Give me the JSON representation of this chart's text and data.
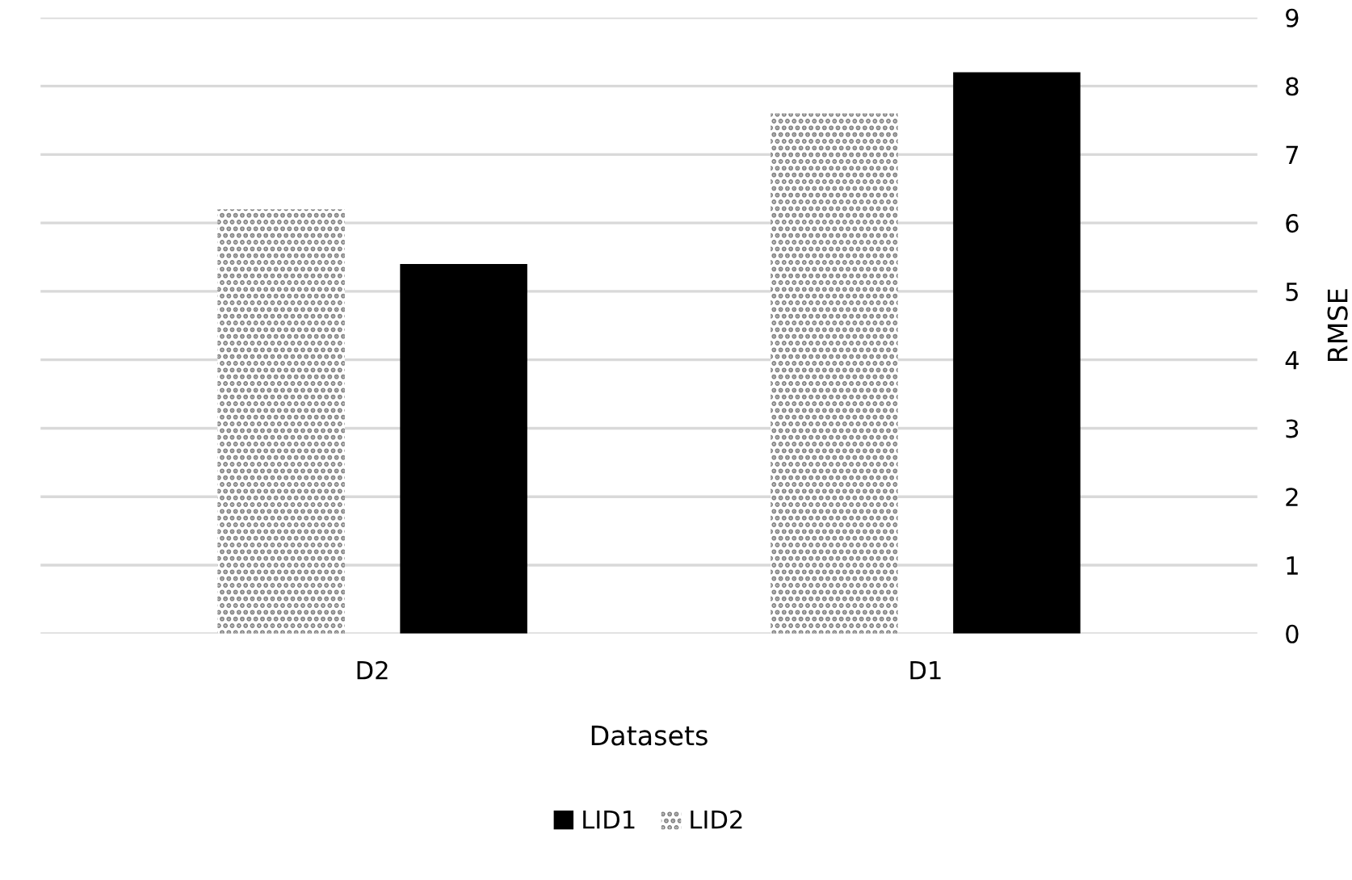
{
  "chart_data": {
    "type": "bar",
    "xlabel": "Datasets",
    "y2label": "RMSE",
    "categories": [
      "D2",
      "D1"
    ],
    "series": [
      {
        "name": "LID2",
        "color": "#808080",
        "values": [
          6.2,
          7.6
        ],
        "axis": "y2"
      },
      {
        "name": "LID1",
        "color": "#000000",
        "values": [
          5.4,
          8.2
        ],
        "axis": "y2"
      }
    ],
    "y2lim": [
      0,
      9
    ],
    "y2ticks": [
      0,
      1,
      2,
      3,
      4,
      5,
      6,
      7,
      8,
      9
    ],
    "grid": "y",
    "legend": "bottom"
  }
}
